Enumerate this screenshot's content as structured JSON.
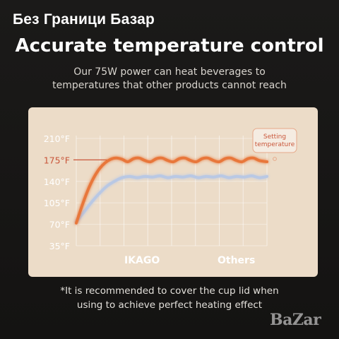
{
  "watermark_top": "Без Граници Базар",
  "headline": "Accurate temperature control",
  "subtitle_lines": [
    "Our 75W power can heat beverages to",
    "temperatures that other products cannot reach"
  ],
  "footnote_lines": [
    "*It is recommended to cover the cup lid when",
    "using to achieve perfect heating effect"
  ],
  "watermark_bottom": "BaZar",
  "colors": {
    "ikago": "#e8773a",
    "others": "#b9c8e4",
    "setting_line": "#c9563a",
    "card_bg": "#ecdcc8"
  },
  "chart_data": {
    "type": "line",
    "y_ticks": [
      "210°F",
      "175°F",
      "140°F",
      "105°F",
      "70°F",
      "35°F"
    ],
    "y_tick_values": [
      210,
      175,
      140,
      105,
      70,
      35
    ],
    "ylim": [
      35,
      210
    ],
    "highlighted_tick": "175°F",
    "annotation": {
      "lines": [
        "Setting",
        "temperature"
      ],
      "value": 175
    },
    "series": [
      {
        "name": "IKAGO",
        "color": "#e8773a",
        "x": [
          0,
          3,
          6,
          9,
          12,
          15,
          18,
          21,
          24,
          27,
          30,
          33,
          36,
          39,
          42,
          45,
          48,
          51,
          54,
          57,
          60,
          63,
          66,
          69,
          72,
          75,
          78,
          81,
          84,
          87,
          90,
          93,
          96,
          100
        ],
        "values": [
          72,
          100,
          125,
          145,
          160,
          170,
          176,
          178,
          176,
          172,
          177,
          178,
          174,
          172,
          177,
          178,
          174,
          172,
          177,
          178,
          174,
          172,
          177,
          178,
          174,
          172,
          177,
          178,
          174,
          172,
          177,
          178,
          174,
          172
        ]
      },
      {
        "name": "Others",
        "color": "#b9c8e4",
        "x": [
          0,
          4,
          8,
          12,
          16,
          20,
          24,
          28,
          32,
          36,
          40,
          44,
          48,
          52,
          56,
          60,
          64,
          68,
          72,
          76,
          80,
          84,
          88,
          92,
          96,
          100
        ],
        "values": [
          74,
          90,
          106,
          120,
          132,
          140,
          146,
          148,
          146,
          148,
          147,
          149,
          146,
          148,
          147,
          149,
          146,
          148,
          147,
          149,
          146,
          148,
          147,
          149,
          146,
          148
        ]
      }
    ],
    "legend": [
      "IKAGO",
      "Others"
    ],
    "legend_position": "bottom",
    "grid": true
  }
}
